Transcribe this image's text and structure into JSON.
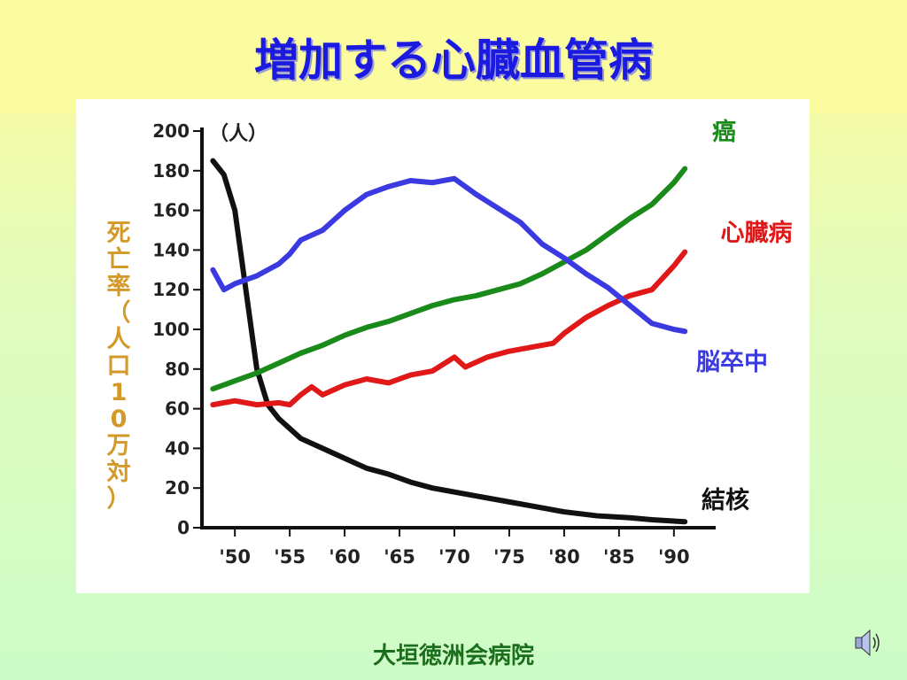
{
  "slide": {
    "title": "増加する心臓血管病",
    "footer": "大垣徳洲会病院"
  },
  "icons": {
    "audio": "speaker-icon"
  },
  "chart_data": {
    "type": "line",
    "title": "",
    "ylabel": "死亡率（人口10万対）",
    "yunit": "（人）",
    "xlabel": "",
    "ylim": [
      0,
      200
    ],
    "xlim": [
      1947,
      1993
    ],
    "yticks": [
      0,
      20,
      40,
      60,
      80,
      100,
      120,
      140,
      160,
      180,
      200
    ],
    "xticks": [
      {
        "value": 1950,
        "label": "'50"
      },
      {
        "value": 1955,
        "label": "'55"
      },
      {
        "value": 1960,
        "label": "'60"
      },
      {
        "value": 1965,
        "label": "'65"
      },
      {
        "value": 1970,
        "label": "'70"
      },
      {
        "value": 1975,
        "label": "'75"
      },
      {
        "value": 1980,
        "label": "'80"
      },
      {
        "value": 1985,
        "label": "'85"
      },
      {
        "value": 1990,
        "label": "'90"
      }
    ],
    "grid": false,
    "legend": "inline-right",
    "series": [
      {
        "name": "結核",
        "color": "#111111",
        "x": [
          1948,
          1949,
          1950,
          1951,
          1952,
          1953,
          1954,
          1955,
          1956,
          1958,
          1960,
          1962,
          1964,
          1966,
          1968,
          1970,
          1972,
          1975,
          1978,
          1980,
          1983,
          1986,
          1988,
          1991
        ],
        "y": [
          185,
          178,
          160,
          120,
          80,
          62,
          55,
          50,
          45,
          40,
          35,
          30,
          27,
          23,
          20,
          18,
          16,
          13,
          10,
          8,
          6,
          5,
          4,
          3
        ]
      },
      {
        "name": "癌",
        "color": "#1a8a1a",
        "x": [
          1948,
          1950,
          1952,
          1954,
          1956,
          1958,
          1960,
          1962,
          1964,
          1966,
          1968,
          1970,
          1972,
          1974,
          1976,
          1978,
          1980,
          1982,
          1984,
          1986,
          1988,
          1990,
          1991
        ],
        "y": [
          70,
          74,
          78,
          83,
          88,
          92,
          97,
          101,
          104,
          108,
          112,
          115,
          117,
          120,
          123,
          128,
          134,
          140,
          148,
          156,
          163,
          174,
          181
        ]
      },
      {
        "name": "心臓病",
        "color": "#e01818",
        "x": [
          1948,
          1950,
          1952,
          1954,
          1955,
          1956,
          1957,
          1958,
          1960,
          1962,
          1964,
          1966,
          1968,
          1970,
          1971,
          1973,
          1975,
          1977,
          1979,
          1980,
          1982,
          1984,
          1986,
          1988,
          1990,
          1991
        ],
        "y": [
          62,
          64,
          62,
          63,
          62,
          67,
          71,
          67,
          72,
          75,
          73,
          77,
          79,
          86,
          81,
          86,
          89,
          91,
          93,
          98,
          106,
          112,
          117,
          120,
          132,
          139
        ]
      },
      {
        "name": "脳卒中",
        "color": "#3a3ae0",
        "x": [
          1948,
          1949,
          1950,
          1952,
          1954,
          1955,
          1956,
          1958,
          1960,
          1962,
          1964,
          1966,
          1968,
          1970,
          1972,
          1974,
          1976,
          1978,
          1980,
          1982,
          1984,
          1986,
          1988,
          1990,
          1991
        ],
        "y": [
          130,
          120,
          123,
          127,
          133,
          138,
          145,
          150,
          160,
          168,
          172,
          175,
          174,
          176,
          168,
          161,
          154,
          143,
          136,
          128,
          121,
          112,
          103,
          100,
          99
        ]
      }
    ]
  }
}
